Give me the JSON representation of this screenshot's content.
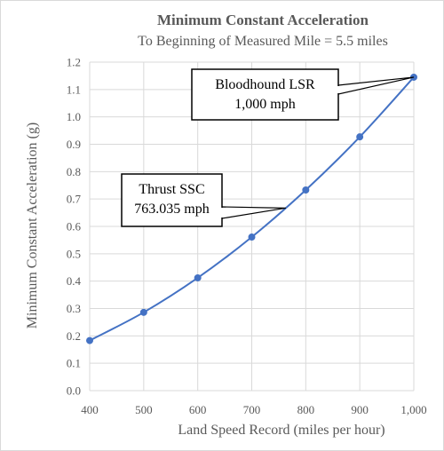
{
  "chart_data": {
    "type": "line",
    "title": "Minimum  Constant Acceleration",
    "subtitle": "To Beginning  of Measured Mile  = 5.5 miles",
    "xlabel": "Land Speed Record (miles  per hour)",
    "ylabel": "Minimum  Constant Acceleration  (g)",
    "xlim": [
      400,
      1000
    ],
    "ylim": [
      0,
      1.2
    ],
    "x_ticks": [
      "400",
      "500",
      "600",
      "700",
      "800",
      "900",
      "1,000"
    ],
    "y_ticks": [
      "0.0",
      "0.1",
      "0.2",
      "0.3",
      "0.4",
      "0.5",
      "0.6",
      "0.7",
      "0.8",
      "0.9",
      "1.0",
      "1.1",
      "1.2"
    ],
    "grid": true,
    "series": [
      {
        "color": "#4472c4",
        "x": [
          400,
          500,
          600,
          700,
          800,
          900,
          1000
        ],
        "y": [
          0.183,
          0.286,
          0.412,
          0.561,
          0.733,
          0.927,
          1.145
        ]
      }
    ],
    "annotations": [
      {
        "lines": [
          "Bloodhound LSR",
          "1,000 mph"
        ],
        "x": 1000,
        "y": 1.145
      },
      {
        "lines": [
          "Thrust SSC",
          "763.035 mph"
        ],
        "x": 763.035,
        "y": 0.667
      }
    ]
  }
}
